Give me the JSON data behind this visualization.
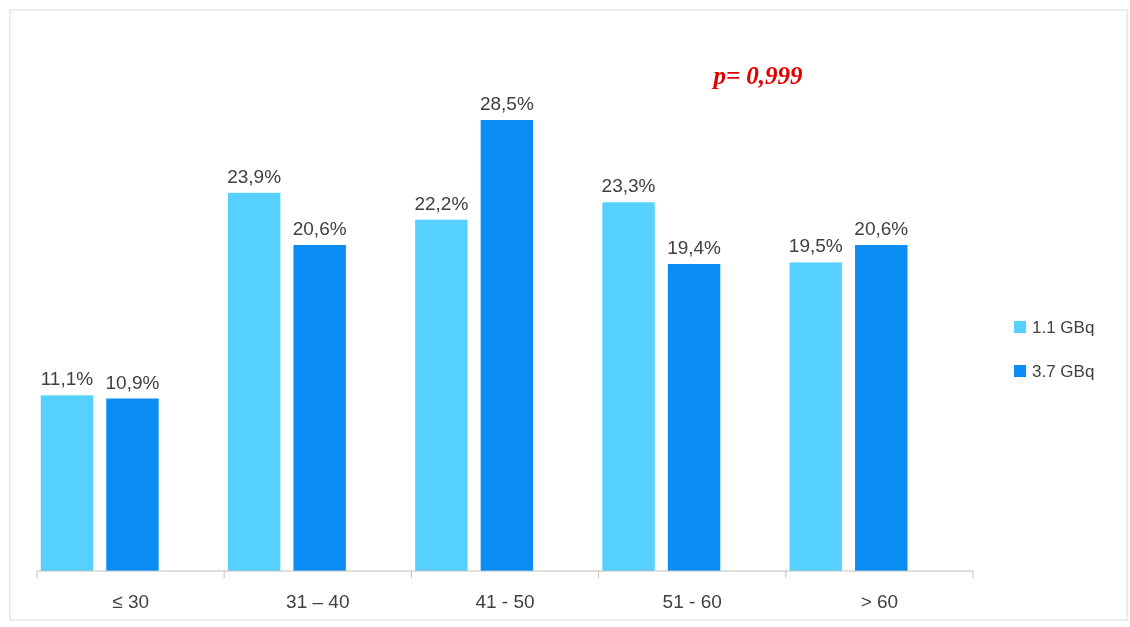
{
  "chart_data": {
    "type": "bar",
    "categories": [
      "≤ 30",
      "31 – 40",
      "41 - 50",
      "51 - 60",
      "> 60"
    ],
    "series": [
      {
        "name": "1.1 GBq",
        "color": "#55d0ff",
        "values": [
          11.1,
          23.9,
          22.2,
          23.3,
          19.5
        ],
        "value_labels": [
          "11,1%",
          "23,9%",
          "22,2%",
          "23,3%",
          "19,5%"
        ]
      },
      {
        "name": "3.7 GBq",
        "color": "#0a8cf5",
        "values": [
          10.9,
          20.6,
          28.5,
          19.4,
          20.6
        ],
        "value_labels": [
          "10,9%",
          "20,6%",
          "28,5%",
          "19,4%",
          "20,6%"
        ]
      }
    ],
    "annotations": [
      "p= 0,999"
    ],
    "legend": "right"
  }
}
